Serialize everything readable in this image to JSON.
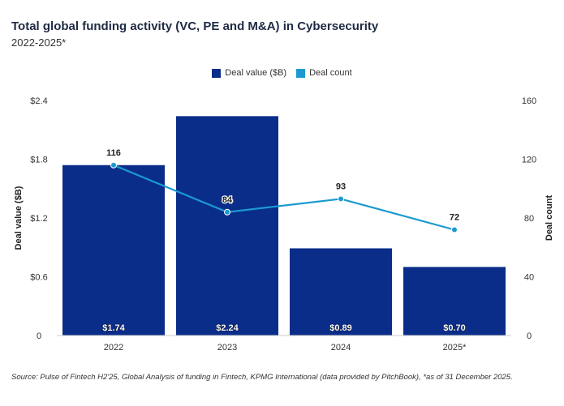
{
  "header": {
    "title": "Total global funding activity (VC, PE and M&A) in Cybersecurity",
    "subtitle": "2022-2025*"
  },
  "legend": {
    "items": [
      {
        "label": "Deal value ($B)",
        "color": "#0a2d8a"
      },
      {
        "label": "Deal count",
        "color": "#1a9ad0"
      }
    ]
  },
  "footer": {
    "source": "Source: Pulse of Fintech H2'25, Global Analysis of funding in Fintech, KPMG International (data provided by PitchBook), *as of 31 December 2025."
  },
  "chart_data": {
    "type": "bar",
    "categories": [
      "2022",
      "2023",
      "2024",
      "2025*"
    ],
    "series": [
      {
        "name": "Deal value ($B)",
        "type": "bar",
        "axis": "left",
        "values": [
          1.74,
          2.24,
          0.89,
          0.7
        ],
        "labels": [
          "$1.74",
          "$2.24",
          "$0.89",
          "$0.70"
        ],
        "color": "#0a2d8a"
      },
      {
        "name": "Deal count",
        "type": "line",
        "axis": "right",
        "values": [
          116,
          84,
          93,
          72
        ],
        "labels": [
          "116",
          "84",
          "93",
          "72"
        ],
        "color": "#1a9ad0"
      }
    ],
    "y_left": {
      "label": "Deal value ($B)",
      "range": [
        0,
        2.4
      ],
      "ticks": [
        0,
        0.6,
        1.2,
        1.8,
        2.4
      ],
      "tick_labels": [
        "0",
        "$0.6",
        "$1.2",
        "$1.8",
        "$2.4"
      ]
    },
    "y_right": {
      "label": "Deal count",
      "range": [
        0,
        160
      ],
      "ticks": [
        0,
        40,
        80,
        120,
        160
      ],
      "tick_labels": [
        "0",
        "40",
        "80",
        "120",
        "160"
      ]
    },
    "grid": false,
    "legend_position": "top-center"
  }
}
